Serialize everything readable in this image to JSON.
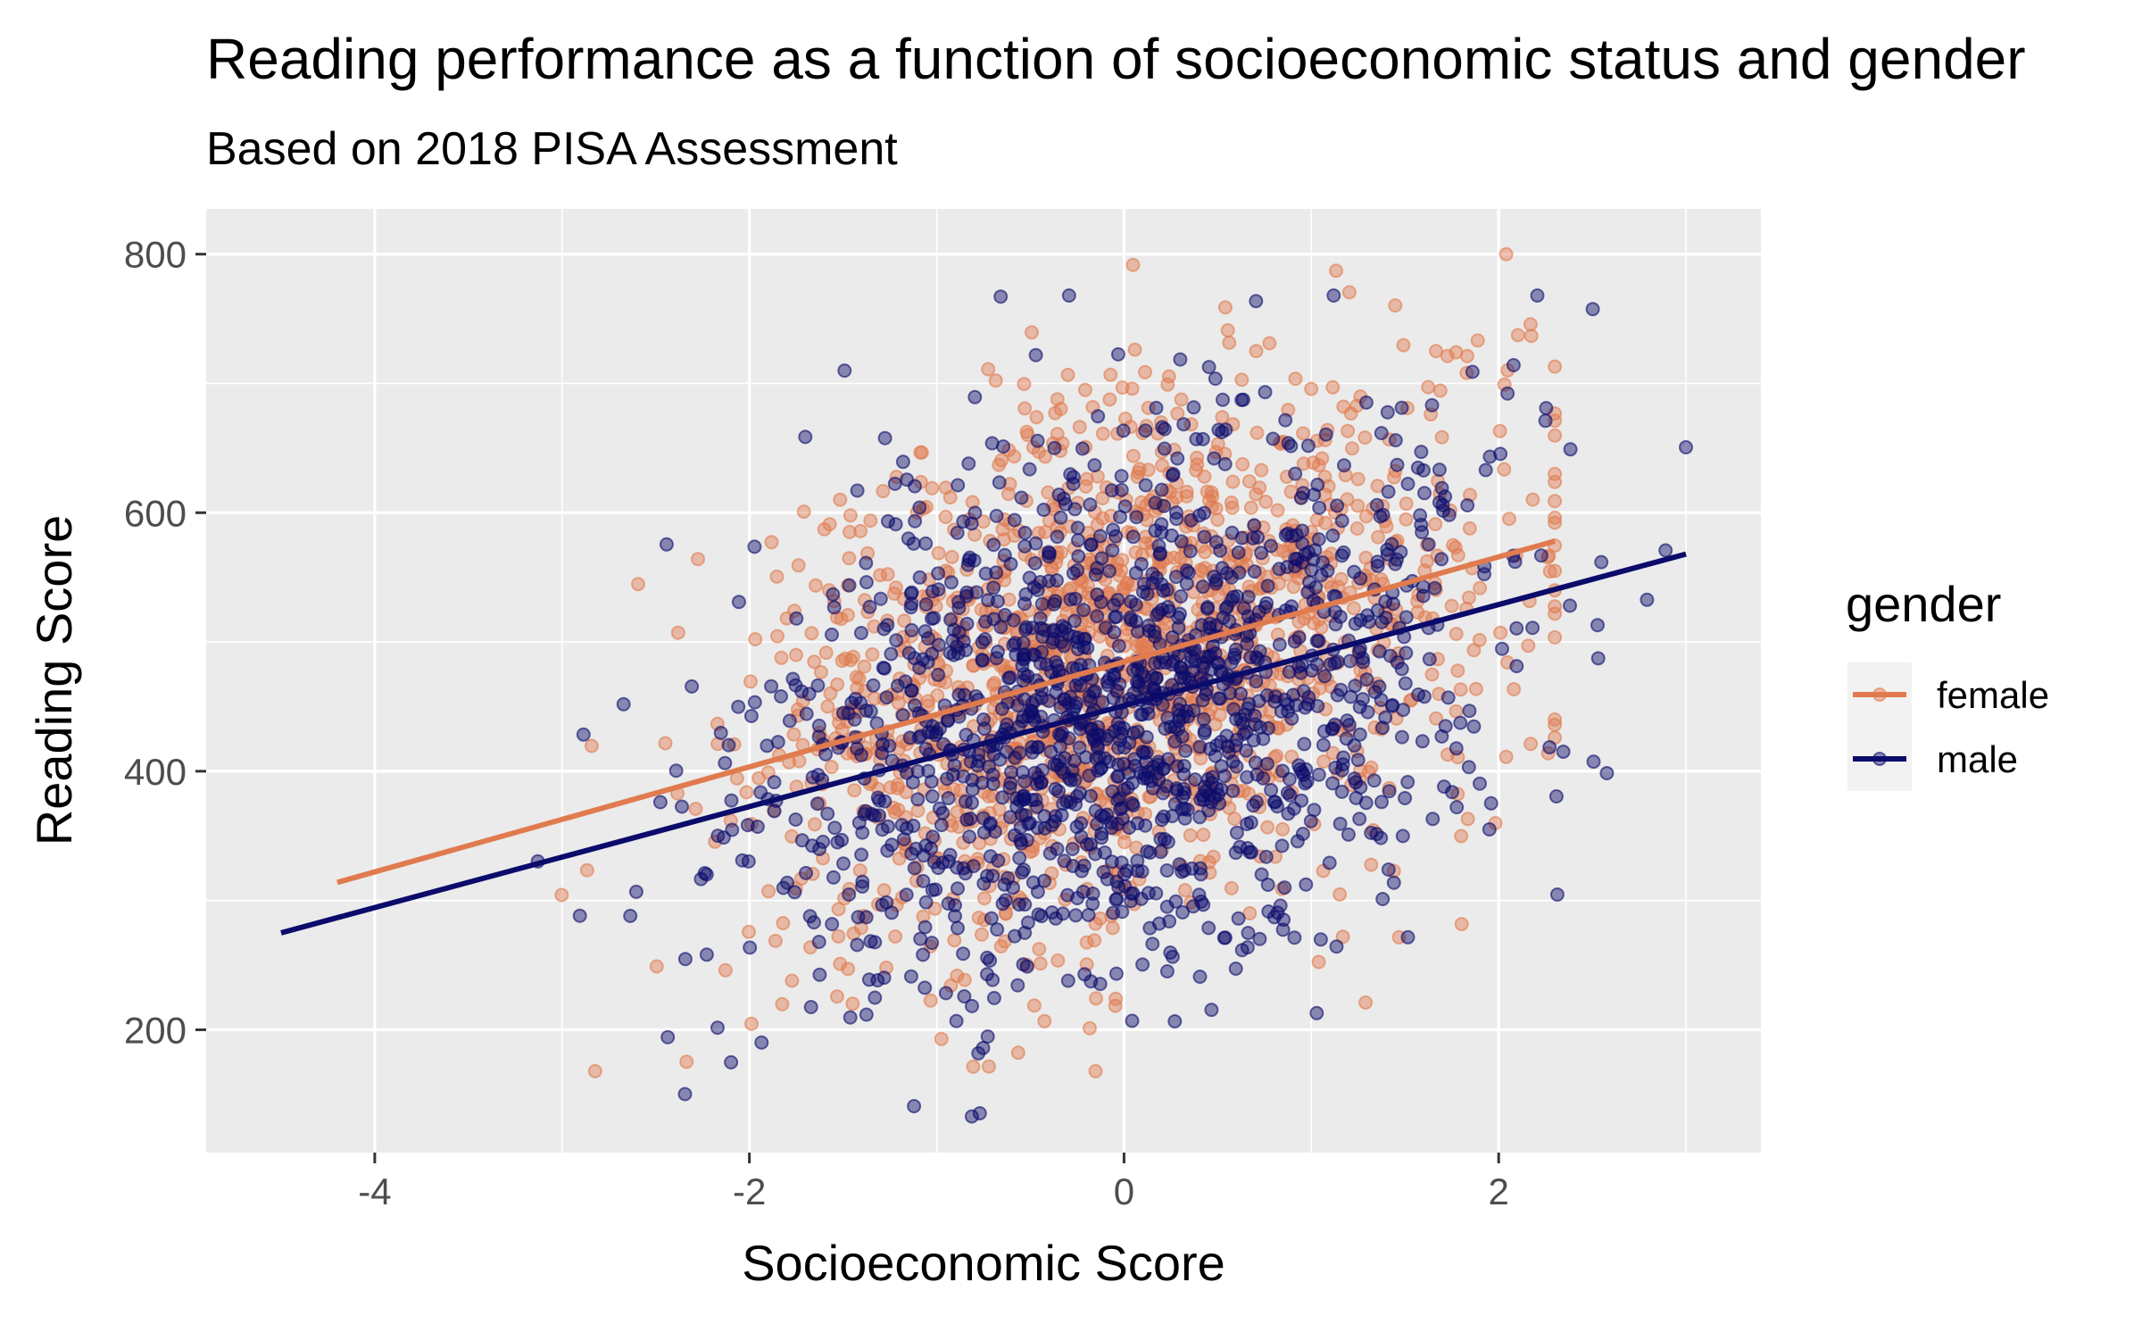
{
  "chart_data": {
    "type": "scatter",
    "title": "Reading performance as a function of socioeconomic status and gender",
    "subtitle": "Based on 2018 PISA Assessment",
    "xlabel": "Socioeconomic Score",
    "ylabel": "Reading Score",
    "xlim": [
      -4.9,
      3.4
    ],
    "ylim": [
      105,
      835
    ],
    "x_ticks": [
      -4,
      -2,
      0,
      2
    ],
    "y_ticks": [
      200,
      400,
      600,
      800
    ],
    "grid": true,
    "legend": {
      "title": "gender",
      "position": "right"
    },
    "point_count_per_series": 1500,
    "series": [
      {
        "name": "female",
        "color": "#E07B4F",
        "point_alpha": 0.45,
        "trend": {
          "x": [
            -4.2,
            2.3
          ],
          "y": [
            314,
            578
          ]
        },
        "x_range": [
          -4.2,
          2.3
        ],
        "y_range": [
          168,
          800
        ],
        "x_center": 0.0,
        "x_spread": 1.0,
        "y_spread": 100,
        "seed": 7
      },
      {
        "name": "male",
        "color": "#0B0B6B",
        "point_alpha": 0.45,
        "trend": {
          "x": [
            -4.5,
            3.0
          ],
          "y": [
            275,
            568
          ]
        },
        "x_range": [
          -4.5,
          3.0
        ],
        "y_range": [
          133,
          768
        ],
        "x_center": 0.0,
        "x_spread": 1.0,
        "y_spread": 100,
        "seed": 13
      }
    ]
  }
}
